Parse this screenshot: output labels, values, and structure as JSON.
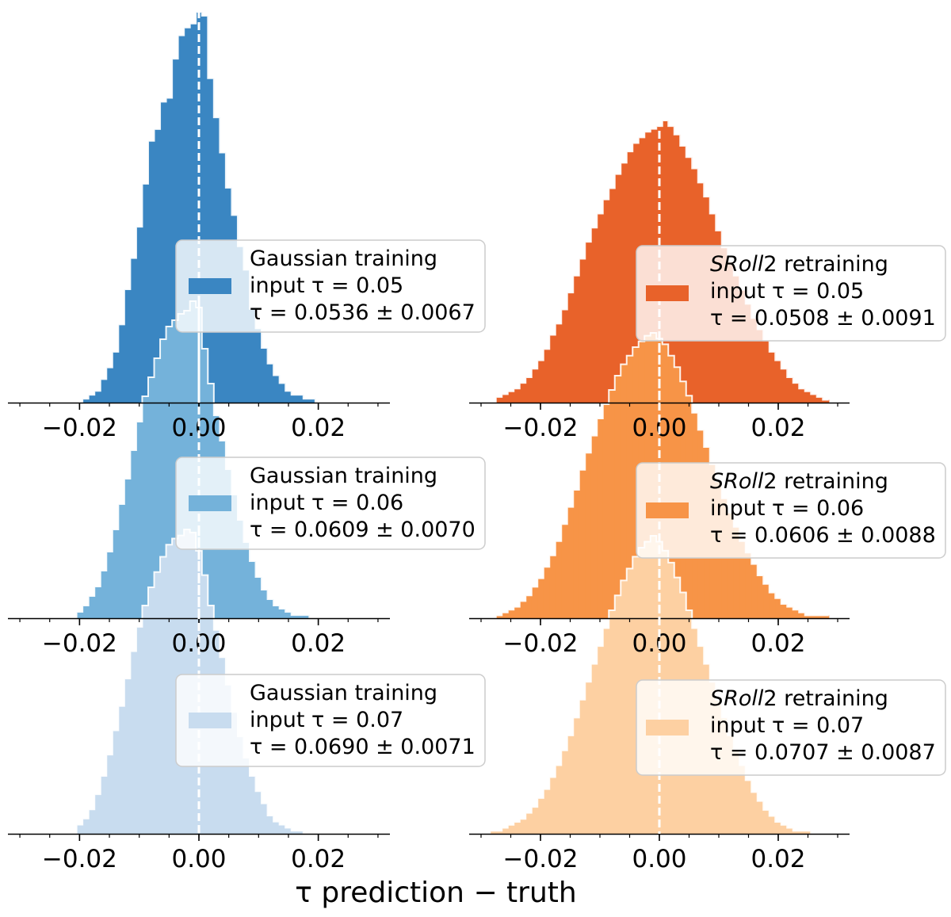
{
  "xlabel": "τ prediction − truth",
  "tick_labels": [
    "−0.02",
    "0.00",
    "0.02"
  ],
  "chart_data": [
    {
      "type": "bar",
      "column": "Gaussian training",
      "color": "#3a86c2",
      "xlim": [
        -0.032,
        0.032
      ],
      "xticks": [
        -0.02,
        0.0,
        0.02
      ],
      "bin_edges_range": [
        -0.0195,
        0.029
      ],
      "bin_width": 0.001,
      "bin_counts": [
        1,
        2,
        3,
        6,
        9,
        13,
        20,
        29,
        37,
        45,
        56,
        67,
        70,
        77,
        78,
        88,
        94,
        96,
        97,
        100,
        99,
        83,
        73,
        64,
        55,
        48,
        40,
        34,
        24,
        19,
        14,
        10,
        7,
        5,
        3,
        2,
        2,
        1,
        1,
        0,
        0,
        0,
        0,
        0,
        0,
        0,
        0,
        0,
        0
      ],
      "legend": {
        "line1": "Gaussian training",
        "line2_label": "input",
        "line2_value": "τ = 0.05",
        "line3": "τ = 0.0536 ± 0.0067"
      }
    },
    {
      "type": "bar",
      "column": "Gaussian training",
      "color": "#74b2da",
      "xlim": [
        -0.032,
        0.032
      ],
      "xticks": [
        -0.02,
        0.0,
        0.02
      ],
      "bin_edges_range": [
        -0.0205,
        0.0235
      ],
      "bin_width": 0.001,
      "bin_counts": [
        2,
        4,
        7,
        10,
        15,
        21,
        28,
        36,
        44,
        53,
        62,
        70,
        76,
        82,
        88,
        92,
        94,
        96,
        97,
        100,
        98,
        85,
        74,
        64,
        56,
        47,
        39,
        31,
        24,
        18,
        13,
        9,
        6,
        4,
        3,
        2,
        1,
        1,
        1,
        0,
        0,
        0,
        0,
        0
      ],
      "legend": {
        "line1": "Gaussian training",
        "line2_label": "input",
        "line2_value": "τ = 0.06",
        "line3": "τ = 0.0609 ± 0.0070"
      }
    },
    {
      "type": "bar",
      "column": "Gaussian training",
      "color": "#c8dcef",
      "xlim": [
        -0.032,
        0.032
      ],
      "xticks": [
        -0.02,
        0.0,
        0.02
      ],
      "bin_edges_range": [
        -0.0205,
        0.0215
      ],
      "bin_width": 0.001,
      "bin_counts": [
        3,
        5,
        8,
        13,
        19,
        26,
        34,
        42,
        51,
        60,
        68,
        75,
        81,
        86,
        91,
        95,
        97,
        98,
        100,
        99,
        93,
        85,
        75,
        67,
        58,
        49,
        40,
        32,
        25,
        19,
        14,
        10,
        6,
        4,
        3,
        2,
        1,
        1,
        0,
        0,
        0,
        0
      ],
      "legend": {
        "line1": "Gaussian training",
        "line2_label": "input",
        "line2_value": "τ = 0.07",
        "line3": "τ = 0.0690 ± 0.0071"
      }
    },
    {
      "type": "bar",
      "column": "SRoll2 retraining",
      "color": "#e8622a",
      "xlim": [
        -0.032,
        0.032
      ],
      "xticks": [
        -0.02,
        0.0,
        0.02
      ],
      "bin_edges_range": [
        -0.0275,
        0.0285
      ],
      "bin_width": 0.001,
      "bin_counts": [
        2,
        3,
        4,
        5,
        7,
        9,
        12,
        15,
        19,
        24,
        28,
        33,
        39,
        45,
        51,
        57,
        62,
        67,
        72,
        76,
        81,
        85,
        89,
        92,
        94,
        96,
        97,
        98,
        100,
        98,
        95,
        91,
        87,
        83,
        78,
        73,
        67,
        61,
        55,
        50,
        45,
        40,
        35,
        30,
        26,
        22,
        18,
        15,
        12,
        9,
        7,
        5,
        4,
        3,
        2,
        1
      ],
      "legend": {
        "line1_em": "SRoll",
        "line1_rest": "2 retraining",
        "line2_label": "input",
        "line2_value": "τ = 0.05",
        "line3": "τ = 0.0508 ± 0.0091"
      }
    },
    {
      "type": "bar",
      "column": "SRoll2 retraining",
      "color": "#f79447",
      "xlim": [
        -0.032,
        0.032
      ],
      "xticks": [
        -0.02,
        0.0,
        0.02
      ],
      "bin_edges_range": [
        -0.0275,
        0.0285
      ],
      "bin_width": 0.001,
      "bin_counts": [
        1,
        2,
        3,
        4,
        6,
        8,
        11,
        14,
        18,
        22,
        27,
        33,
        39,
        45,
        52,
        58,
        64,
        70,
        75,
        80,
        85,
        89,
        92,
        95,
        97,
        99,
        100,
        98,
        96,
        92,
        88,
        83,
        78,
        72,
        66,
        60,
        54,
        48,
        42,
        37,
        32,
        27,
        23,
        19,
        15,
        12,
        9,
        7,
        5,
        4,
        3,
        2,
        1,
        1,
        1,
        1
      ],
      "legend": {
        "line1_em": "SRoll",
        "line1_rest": "2 retraining",
        "line2_label": "input",
        "line2_value": "τ = 0.06",
        "line3": "τ = 0.0606 ± 0.0088"
      }
    },
    {
      "type": "bar",
      "column": "SRoll2 retraining",
      "color": "#fdd0a2",
      "xlim": [
        -0.032,
        0.032
      ],
      "xticks": [
        -0.02,
        0.0,
        0.02
      ],
      "bin_edges_range": [
        -0.0285,
        0.0265
      ],
      "bin_width": 0.001,
      "bin_counts": [
        1,
        1,
        2,
        3,
        4,
        5,
        7,
        9,
        12,
        15,
        19,
        23,
        28,
        33,
        39,
        45,
        51,
        57,
        63,
        69,
        75,
        80,
        85,
        89,
        93,
        96,
        98,
        100,
        98,
        95,
        91,
        86,
        81,
        75,
        69,
        63,
        57,
        51,
        45,
        39,
        33,
        28,
        23,
        18,
        14,
        11,
        8,
        6,
        4,
        3,
        2,
        1,
        1,
        1,
        0
      ],
      "legend": {
        "line1_em": "SRoll",
        "line1_rest": "2 retraining",
        "line2_label": "input",
        "line2_value": "τ = 0.07",
        "line3": "τ = 0.0707 ± 0.0087"
      }
    }
  ]
}
